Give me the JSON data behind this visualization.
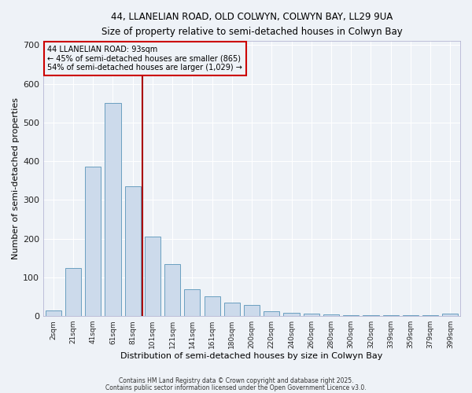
{
  "title_line1": "44, LLANELIAN ROAD, OLD COLWYN, COLWYN BAY, LL29 9UA",
  "title_line2": "Size of property relative to semi-detached houses in Colwyn Bay",
  "xlabel": "Distribution of semi-detached houses by size in Colwyn Bay",
  "ylabel": "Number of semi-detached properties",
  "bar_labels": [
    "2sqm",
    "21sqm",
    "41sqm",
    "61sqm",
    "81sqm",
    "101sqm",
    "121sqm",
    "141sqm",
    "161sqm",
    "180sqm",
    "200sqm",
    "220sqm",
    "240sqm",
    "260sqm",
    "280sqm",
    "300sqm",
    "320sqm",
    "339sqm",
    "359sqm",
    "379sqm",
    "399sqm"
  ],
  "bar_values": [
    15,
    125,
    385,
    550,
    335,
    205,
    135,
    70,
    50,
    35,
    28,
    13,
    8,
    7,
    5,
    2,
    2,
    2,
    2,
    2,
    6
  ],
  "bar_color": "#ccdaeb",
  "bar_edge_color": "#6a9fc0",
  "annotation_title": "44 LLANELIAN ROAD: 93sqm",
  "annotation_line1": "← 45% of semi-detached houses are smaller (865)",
  "annotation_line2": "54% of semi-detached houses are larger (1,029) →",
  "vline_color": "#aa0000",
  "annotation_box_color": "#cc0000",
  "ylim": [
    0,
    710
  ],
  "yticks": [
    0,
    100,
    200,
    300,
    400,
    500,
    600,
    700
  ],
  "footnote1": "Contains HM Land Registry data © Crown copyright and database right 2025.",
  "footnote2": "Contains public sector information licensed under the Open Government Licence v3.0.",
  "background_color": "#eef2f7",
  "grid_color": "#ffffff",
  "vline_index": 4.5
}
